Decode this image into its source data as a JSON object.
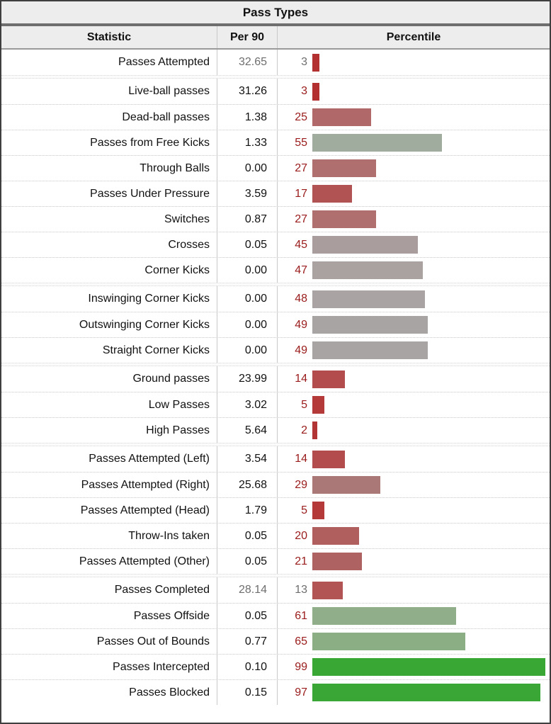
{
  "title": "Pass Types",
  "columns": {
    "statistic": "Statistic",
    "per90": "Per 90",
    "percentile": "Percentile"
  },
  "colors": {
    "table_border": "#3f3f3f",
    "header_bg": "#ededed",
    "title_rule": "#6e6e6e",
    "header_rule": "#9a9a9a",
    "row_divider": "#c9c9c9",
    "percentile_number": "#9a1b1b",
    "muted_text": "#6e6e6e",
    "low_percentile_bar": "#b23030",
    "mid_percentile_bar": "#a9a4a4",
    "high_percentile_bar": "#38a733"
  },
  "groups": [
    {
      "rows": [
        {
          "stat": "Passes Attempted",
          "per90": "32.65",
          "pct": 3,
          "bar_color": "#b23030",
          "muted": true
        }
      ]
    },
    {
      "rows": [
        {
          "stat": "Live-ball passes",
          "per90": "31.26",
          "pct": 3,
          "bar_color": "#b23030",
          "muted": false
        },
        {
          "stat": "Dead-ball passes",
          "per90": "1.38",
          "pct": 25,
          "bar_color": "#b06868",
          "muted": false
        },
        {
          "stat": "Passes from Free Kicks",
          "per90": "1.33",
          "pct": 55,
          "bar_color": "#a0ac9e",
          "muted": false
        },
        {
          "stat": "Through Balls",
          "per90": "0.00",
          "pct": 27,
          "bar_color": "#af6f6f",
          "muted": false
        },
        {
          "stat": "Passes Under Pressure",
          "per90": "3.59",
          "pct": 17,
          "bar_color": "#b25353",
          "muted": false
        },
        {
          "stat": "Switches",
          "per90": "0.87",
          "pct": 27,
          "bar_color": "#af6f6f",
          "muted": false
        },
        {
          "stat": "Crosses",
          "per90": "0.05",
          "pct": 45,
          "bar_color": "#aa9d9d",
          "muted": false
        },
        {
          "stat": "Corner Kicks",
          "per90": "0.00",
          "pct": 47,
          "bar_color": "#aaa1a1",
          "muted": false
        }
      ]
    },
    {
      "rows": [
        {
          "stat": "Inswinging Corner Kicks",
          "per90": "0.00",
          "pct": 48,
          "bar_color": "#a9a3a3",
          "muted": false
        },
        {
          "stat": "Outswinging Corner Kicks",
          "per90": "0.00",
          "pct": 49,
          "bar_color": "#a9a4a4",
          "muted": false
        },
        {
          "stat": "Straight Corner Kicks",
          "per90": "0.00",
          "pct": 49,
          "bar_color": "#a9a4a4",
          "muted": false
        }
      ]
    },
    {
      "rows": [
        {
          "stat": "Ground passes",
          "per90": "23.99",
          "pct": 14,
          "bar_color": "#b34d4d",
          "muted": false
        },
        {
          "stat": "Low Passes",
          "per90": "3.02",
          "pct": 5,
          "bar_color": "#b43a3a",
          "muted": false
        },
        {
          "stat": "High Passes",
          "per90": "5.64",
          "pct": 2,
          "bar_color": "#b23434",
          "muted": false
        }
      ]
    },
    {
      "rows": [
        {
          "stat": "Passes Attempted (Left)",
          "per90": "3.54",
          "pct": 14,
          "bar_color": "#b34d4d",
          "muted": false
        },
        {
          "stat": "Passes Attempted (Right)",
          "per90": "25.68",
          "pct": 29,
          "bar_color": "#ab7878",
          "muted": false
        },
        {
          "stat": "Passes Attempted (Head)",
          "per90": "1.79",
          "pct": 5,
          "bar_color": "#b43a3a",
          "muted": false
        },
        {
          "stat": "Throw-Ins taken",
          "per90": "0.05",
          "pct": 20,
          "bar_color": "#b05e5e",
          "muted": false
        },
        {
          "stat": "Passes Attempted (Other)",
          "per90": "0.05",
          "pct": 21,
          "bar_color": "#af6262",
          "muted": false
        }
      ]
    },
    {
      "rows": [
        {
          "stat": "Passes Completed",
          "per90": "28.14",
          "pct": 13,
          "bar_color": "#b25454",
          "muted": true
        },
        {
          "stat": "Passes Offside",
          "per90": "0.05",
          "pct": 61,
          "bar_color": "#90ae8a",
          "muted": false
        },
        {
          "stat": "Passes Out of Bounds",
          "per90": "0.77",
          "pct": 65,
          "bar_color": "#8bae84",
          "muted": false
        },
        {
          "stat": "Passes Intercepted",
          "per90": "0.10",
          "pct": 99,
          "bar_color": "#38a733",
          "muted": false
        },
        {
          "stat": "Passes Blocked",
          "per90": "0.15",
          "pct": 97,
          "bar_color": "#3aa635",
          "muted": false
        }
      ]
    }
  ],
  "chart_data": {
    "type": "bar",
    "title": "Pass Types",
    "orientation": "horizontal",
    "xlabel": "Percentile",
    "xlim": [
      0,
      100
    ],
    "categories": [
      "Passes Attempted",
      "Live-ball passes",
      "Dead-ball passes",
      "Passes from Free Kicks",
      "Through Balls",
      "Passes Under Pressure",
      "Switches",
      "Crosses",
      "Corner Kicks",
      "Inswinging Corner Kicks",
      "Outswinging Corner Kicks",
      "Straight Corner Kicks",
      "Ground passes",
      "Low Passes",
      "High Passes",
      "Passes Attempted (Left)",
      "Passes Attempted (Right)",
      "Passes Attempted (Head)",
      "Throw-Ins taken",
      "Passes Attempted (Other)",
      "Passes Completed",
      "Passes Offside",
      "Passes Out of Bounds",
      "Passes Intercepted",
      "Passes Blocked"
    ],
    "series": [
      {
        "name": "Per 90",
        "values": [
          32.65,
          31.26,
          1.38,
          1.33,
          0.0,
          3.59,
          0.87,
          0.05,
          0.0,
          0.0,
          0.0,
          0.0,
          23.99,
          3.02,
          5.64,
          3.54,
          25.68,
          1.79,
          0.05,
          0.05,
          28.14,
          0.05,
          0.77,
          0.1,
          0.15
        ]
      },
      {
        "name": "Percentile",
        "values": [
          3,
          3,
          25,
          55,
          27,
          17,
          27,
          45,
          47,
          48,
          49,
          49,
          14,
          5,
          2,
          14,
          29,
          5,
          20,
          21,
          13,
          61,
          65,
          99,
          97
        ]
      }
    ],
    "legend": "none",
    "grid": false,
    "color_scale": "red (low percentile) through gray (50th) to green (high percentile)"
  }
}
